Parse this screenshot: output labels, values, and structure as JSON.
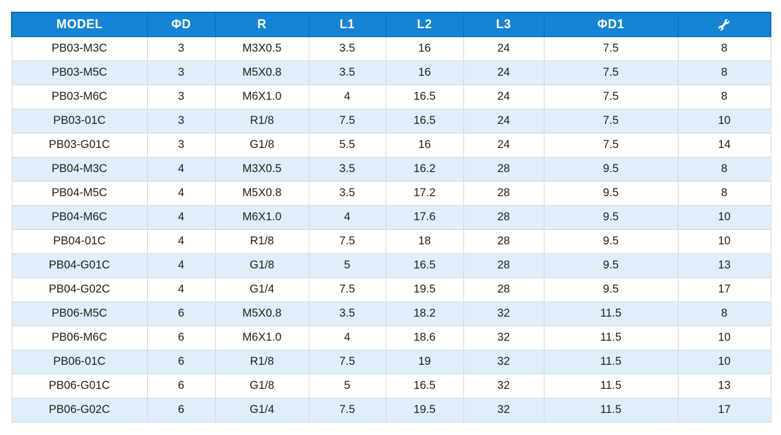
{
  "chart_data": {
    "type": "table",
    "title": "",
    "columns": [
      "MODEL",
      "ΦD",
      "R",
      "L1",
      "L2",
      "L3",
      "ΦD1",
      ""
    ],
    "last_column_icon": "wrench-icon",
    "rows": [
      [
        "PB03-M3C",
        "3",
        "M3X0.5",
        "3.5",
        "16",
        "24",
        "7.5",
        "8"
      ],
      [
        "PB03-M5C",
        "3",
        "M5X0.8",
        "3.5",
        "16",
        "24",
        "7.5",
        "8"
      ],
      [
        "PB03-M6C",
        "3",
        "M6X1.0",
        "4",
        "16.5",
        "24",
        "7.5",
        "8"
      ],
      [
        "PB03-01C",
        "3",
        "R1/8",
        "7.5",
        "16.5",
        "24",
        "7.5",
        "10"
      ],
      [
        "PB03-G01C",
        "3",
        "G1/8",
        "5.5",
        "16",
        "24",
        "7.5",
        "14"
      ],
      [
        "PB04-M3C",
        "4",
        "M3X0.5",
        "3.5",
        "16.2",
        "28",
        "9.5",
        "8"
      ],
      [
        "PB04-M5C",
        "4",
        "M5X0.8",
        "3.5",
        "17.2",
        "28",
        "9.5",
        "8"
      ],
      [
        "PB04-M6C",
        "4",
        "M6X1.0",
        "4",
        "17.6",
        "28",
        "9.5",
        "10"
      ],
      [
        "PB04-01C",
        "4",
        "R1/8",
        "7.5",
        "18",
        "28",
        "9.5",
        "10"
      ],
      [
        "PB04-G01C",
        "4",
        "G1/8",
        "5",
        "16.5",
        "28",
        "9.5",
        "13"
      ],
      [
        "PB04-G02C",
        "4",
        "G1/4",
        "7.5",
        "19.5",
        "28",
        "9.5",
        "17"
      ],
      [
        "PB06-M5C",
        "6",
        "M5X0.8",
        "3.5",
        "18.2",
        "32",
        "11.5",
        "8"
      ],
      [
        "PB06-M6C",
        "6",
        "M6X1.0",
        "4",
        "18.6",
        "32",
        "11.5",
        "10"
      ],
      [
        "PB06-01C",
        "6",
        "R1/8",
        "7.5",
        "19",
        "32",
        "11.5",
        "10"
      ],
      [
        "PB06-G01C",
        "6",
        "G1/8",
        "5",
        "16.5",
        "32",
        "11.5",
        "13"
      ],
      [
        "PB06-G02C",
        "6",
        "G1/4",
        "7.5",
        "19.5",
        "32",
        "11.5",
        "17"
      ]
    ],
    "layout": {
      "striped": true,
      "stripe_even_rows": true
    }
  },
  "colors": {
    "header_bg": "#1584d4",
    "header_border": "#0f6cb2",
    "header_text": "#ffffff",
    "row_alt_bg": "#dfeefa",
    "row_bg": "#ffffff",
    "grid_line": "#d3d9dd",
    "text": "#1d1d1d"
  }
}
